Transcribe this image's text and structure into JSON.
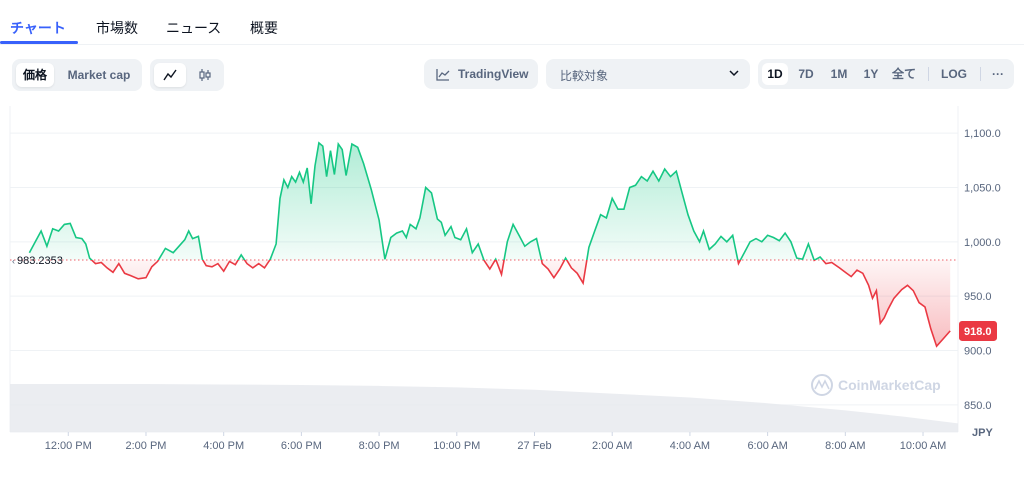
{
  "tabs": [
    {
      "label": "チャート",
      "active": true
    },
    {
      "label": "市場数",
      "active": false
    },
    {
      "label": "ニュース",
      "active": false
    },
    {
      "label": "概要",
      "active": false
    }
  ],
  "toolbar": {
    "metric_options": [
      "価格",
      "Market cap"
    ],
    "metric_selected": "価格",
    "chart_style_icons": [
      "line-chart-icon",
      "candlestick-icon"
    ],
    "tradingview_label": "TradingView",
    "compare_placeholder": "比較対象",
    "ranges": [
      "1D",
      "7D",
      "1M",
      "1Y",
      "全て"
    ],
    "range_selected": "1D",
    "log_label": "LOG",
    "more_label": "···"
  },
  "colors": {
    "up": "#16c784",
    "down": "#ea3943",
    "accent": "#3861fb",
    "baseline": "#ea3943"
  },
  "chart_data": {
    "type": "area",
    "baseline": 983.2353,
    "baseline_label": "983.2353",
    "last_value": 918.0,
    "last_value_label": "918.0",
    "y_axis_unit": "JPY",
    "ylim": [
      825,
      1125
    ],
    "y_ticks": [
      {
        "value": 850,
        "label": "850.0"
      },
      {
        "value": 900,
        "label": "900.0"
      },
      {
        "value": 950,
        "label": "950.0"
      },
      {
        "value": 1000,
        "label": "1,000.0"
      },
      {
        "value": 1050,
        "label": "1,050.0"
      },
      {
        "value": 1100,
        "label": "1,100.0"
      }
    ],
    "x_ticks": [
      "12:00 PM",
      "2:00 PM",
      "4:00 PM",
      "6:00 PM",
      "8:00 PM",
      "10:00 PM",
      "27 Feb",
      "2:00 AM",
      "4:00 AM",
      "6:00 AM",
      "8:00 AM",
      "10:00 AM"
    ],
    "x_tick_hours": [
      12,
      14,
      16,
      18,
      20,
      22,
      24,
      26,
      28,
      30,
      32,
      34
    ],
    "x_range_hours": [
      10.5,
      34.9
    ],
    "series": [
      {
        "values": [
          [
            11.0,
            990
          ],
          [
            11.15,
            1000
          ],
          [
            11.3,
            1010
          ],
          [
            11.45,
            996
          ],
          [
            11.6,
            1012
          ],
          [
            11.75,
            1010
          ],
          [
            11.9,
            1016
          ],
          [
            12.05,
            1017
          ],
          [
            12.2,
            1004
          ],
          [
            12.35,
            1003
          ],
          [
            12.45,
            998
          ],
          [
            12.55,
            985
          ],
          [
            12.7,
            980
          ],
          [
            12.85,
            981
          ],
          [
            13.0,
            976
          ],
          [
            13.15,
            972
          ],
          [
            13.3,
            980
          ],
          [
            13.45,
            971
          ],
          [
            13.6,
            969
          ],
          [
            13.8,
            966
          ],
          [
            14.0,
            967
          ],
          [
            14.15,
            977
          ],
          [
            14.3,
            982
          ],
          [
            14.5,
            994
          ],
          [
            14.7,
            990
          ],
          [
            14.85,
            996
          ],
          [
            15.0,
            1002
          ],
          [
            15.1,
            1010
          ],
          [
            15.2,
            1003
          ],
          [
            15.35,
            1005
          ],
          [
            15.45,
            984
          ],
          [
            15.55,
            978
          ],
          [
            15.7,
            977
          ],
          [
            15.85,
            980
          ],
          [
            16.0,
            973
          ],
          [
            16.15,
            982
          ],
          [
            16.3,
            979
          ],
          [
            16.45,
            988
          ],
          [
            16.6,
            980
          ],
          [
            16.75,
            976
          ],
          [
            16.9,
            980
          ],
          [
            17.05,
            976
          ],
          [
            17.2,
            984
          ],
          [
            17.35,
            998
          ],
          [
            17.45,
            1040
          ],
          [
            17.55,
            1057
          ],
          [
            17.65,
            1050
          ],
          [
            17.75,
            1060
          ],
          [
            17.85,
            1055
          ],
          [
            17.95,
            1064
          ],
          [
            18.05,
            1055
          ],
          [
            18.15,
            1068
          ],
          [
            18.25,
            1035
          ],
          [
            18.35,
            1070
          ],
          [
            18.45,
            1091
          ],
          [
            18.55,
            1088
          ],
          [
            18.65,
            1060
          ],
          [
            18.75,
            1084
          ],
          [
            18.85,
            1062
          ],
          [
            18.95,
            1090
          ],
          [
            19.05,
            1085
          ],
          [
            19.15,
            1061
          ],
          [
            19.3,
            1090
          ],
          [
            19.45,
            1087
          ],
          [
            19.6,
            1072
          ],
          [
            19.8,
            1048
          ],
          [
            20.0,
            1020
          ],
          [
            20.15,
            984
          ],
          [
            20.3,
            1004
          ],
          [
            20.45,
            1008
          ],
          [
            20.6,
            1010
          ],
          [
            20.7,
            1004
          ],
          [
            20.8,
            1016
          ],
          [
            20.95,
            1012
          ],
          [
            21.05,
            1022
          ],
          [
            21.2,
            1050
          ],
          [
            21.35,
            1045
          ],
          [
            21.5,
            1021
          ],
          [
            21.6,
            1018
          ],
          [
            21.7,
            1006
          ],
          [
            21.85,
            1014
          ],
          [
            21.95,
            1004
          ],
          [
            22.1,
            1002
          ],
          [
            22.25,
            1012
          ],
          [
            22.4,
            990
          ],
          [
            22.55,
            998
          ],
          [
            22.7,
            983
          ],
          [
            22.85,
            975
          ],
          [
            23.0,
            984
          ],
          [
            23.15,
            970
          ],
          [
            23.3,
            1000
          ],
          [
            23.45,
            1016
          ],
          [
            23.6,
            1006
          ],
          [
            23.75,
            996
          ],
          [
            23.9,
            1000
          ],
          [
            24.05,
            1003
          ],
          [
            24.2,
            980
          ],
          [
            24.35,
            975
          ],
          [
            24.5,
            967
          ],
          [
            24.65,
            975
          ],
          [
            24.8,
            985
          ],
          [
            24.95,
            976
          ],
          [
            25.1,
            971
          ],
          [
            25.25,
            962
          ],
          [
            25.4,
            995
          ],
          [
            25.55,
            1010
          ],
          [
            25.7,
            1025
          ],
          [
            25.85,
            1022
          ],
          [
            26.0,
            1040
          ],
          [
            26.15,
            1030
          ],
          [
            26.3,
            1030
          ],
          [
            26.45,
            1050
          ],
          [
            26.6,
            1052
          ],
          [
            26.75,
            1060
          ],
          [
            26.9,
            1056
          ],
          [
            27.05,
            1065
          ],
          [
            27.2,
            1056
          ],
          [
            27.35,
            1067
          ],
          [
            27.5,
            1060
          ],
          [
            27.65,
            1065
          ],
          [
            27.8,
            1045
          ],
          [
            27.95,
            1025
          ],
          [
            28.1,
            1010
          ],
          [
            28.25,
            1000
          ],
          [
            28.35,
            1010
          ],
          [
            28.5,
            993
          ],
          [
            28.65,
            998
          ],
          [
            28.8,
            1005
          ],
          [
            28.95,
            1000
          ],
          [
            29.1,
            1006
          ],
          [
            29.25,
            980
          ],
          [
            29.4,
            990
          ],
          [
            29.55,
            1000
          ],
          [
            29.7,
            1003
          ],
          [
            29.85,
            1000
          ],
          [
            30.0,
            1006
          ],
          [
            30.15,
            1004
          ],
          [
            30.3,
            1001
          ],
          [
            30.45,
            1008
          ],
          [
            30.6,
            1000
          ],
          [
            30.75,
            985
          ],
          [
            30.9,
            984
          ],
          [
            31.05,
            998
          ],
          [
            31.2,
            983
          ],
          [
            31.35,
            986
          ],
          [
            31.5,
            980
          ],
          [
            31.65,
            981
          ],
          [
            31.85,
            976
          ],
          [
            32.0,
            972
          ],
          [
            32.15,
            968
          ],
          [
            32.3,
            974
          ],
          [
            32.45,
            971
          ],
          [
            32.6,
            960
          ],
          [
            32.7,
            948
          ],
          [
            32.8,
            955
          ],
          [
            32.9,
            925
          ],
          [
            33.0,
            930
          ],
          [
            33.1,
            938
          ],
          [
            33.25,
            948
          ],
          [
            33.45,
            956
          ],
          [
            33.6,
            960
          ],
          [
            33.75,
            955
          ],
          [
            33.9,
            944
          ],
          [
            34.05,
            940
          ],
          [
            34.2,
            920
          ],
          [
            34.35,
            904
          ],
          [
            34.5,
            910
          ],
          [
            34.7,
            918
          ]
        ]
      }
    ],
    "volume": {
      "type": "area",
      "values": [
        [
          10.5,
          1.0
        ],
        [
          14.0,
          1.0
        ],
        [
          16.0,
          0.99
        ],
        [
          18.0,
          0.98
        ],
        [
          20.0,
          0.96
        ],
        [
          22.0,
          0.93
        ],
        [
          24.0,
          0.88
        ],
        [
          26.0,
          0.8
        ],
        [
          28.0,
          0.72
        ],
        [
          30.0,
          0.6
        ],
        [
          32.0,
          0.45
        ],
        [
          33.5,
          0.32
        ],
        [
          34.9,
          0.18
        ]
      ]
    },
    "watermark": "CoinMarketCap"
  }
}
